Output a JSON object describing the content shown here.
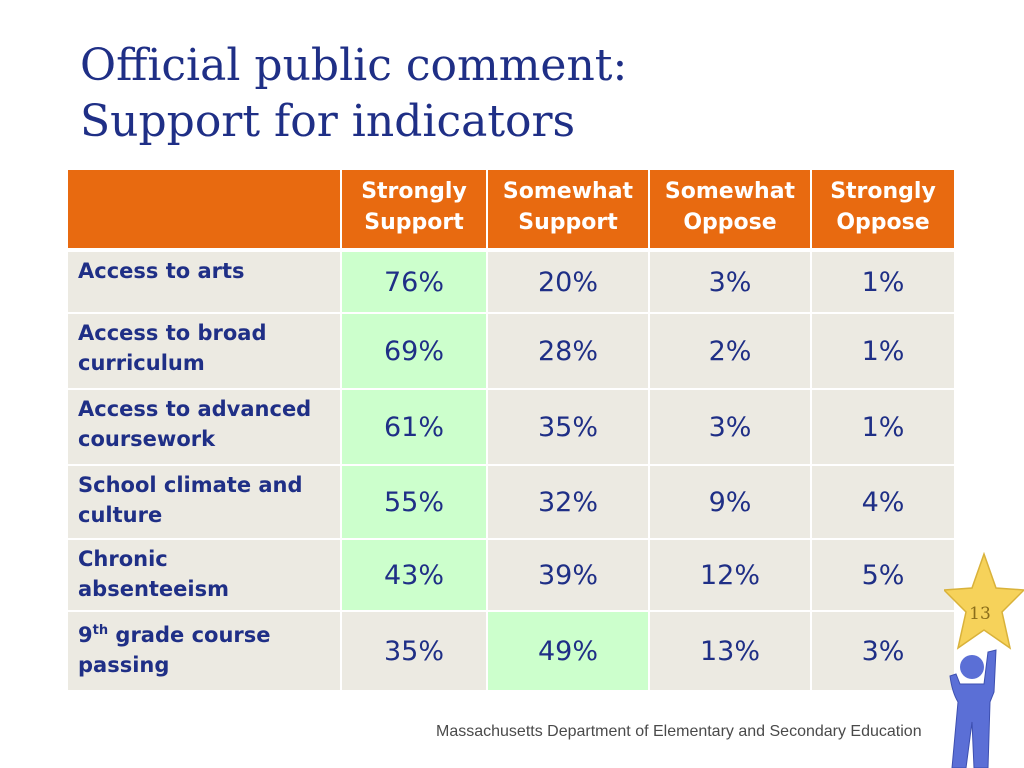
{
  "title": {
    "line1": "Official public comment:",
    "line2": "Support for indicators"
  },
  "table": {
    "headers": [
      {
        "line1": "Strongly",
        "line2": "Support"
      },
      {
        "line1": "Somewhat",
        "line2": "Support"
      },
      {
        "line1": "Somewhat",
        "line2": "Oppose"
      },
      {
        "line1": "Strongly",
        "line2": "Oppose"
      }
    ],
    "rows": [
      {
        "label_line1": "Access to arts",
        "label_line2": "",
        "values": [
          "76%",
          "20%",
          "3%",
          "1%"
        ],
        "highlight_col": 0
      },
      {
        "label_line1": "Access to broad",
        "label_line2": "curriculum",
        "values": [
          "69%",
          "28%",
          "2%",
          "1%"
        ],
        "highlight_col": 0
      },
      {
        "label_line1": "Access to advanced",
        "label_line2": "coursework",
        "values": [
          "61%",
          "35%",
          "3%",
          "1%"
        ],
        "highlight_col": 0
      },
      {
        "label_line1": "School climate and",
        "label_line2": "culture",
        "values": [
          "55%",
          "32%",
          "9%",
          "4%"
        ],
        "highlight_col": 0
      },
      {
        "label_line1": "Chronic",
        "label_line2": "absenteeism",
        "values": [
          "43%",
          "39%",
          "12%",
          "5%"
        ],
        "highlight_col": 0
      },
      {
        "label_prefix": "9",
        "label_sup": "th",
        "label_line1": " grade course",
        "label_line2": "passing",
        "values": [
          "35%",
          "49%",
          "13%",
          "3%"
        ],
        "highlight_col": 1
      }
    ]
  },
  "footer": {
    "source": "Massachusetts Department of Elementary and Secondary Education"
  },
  "page_number": "13",
  "colors": {
    "title": "#1f2f86",
    "header_bg": "#e86a10",
    "cell_bg": "#eceae2",
    "highlight_bg": "#ccffcc",
    "star": "#f6d25a",
    "figure": "#5b6fd6"
  },
  "icons": {
    "decoration": "star-figure-icon"
  }
}
